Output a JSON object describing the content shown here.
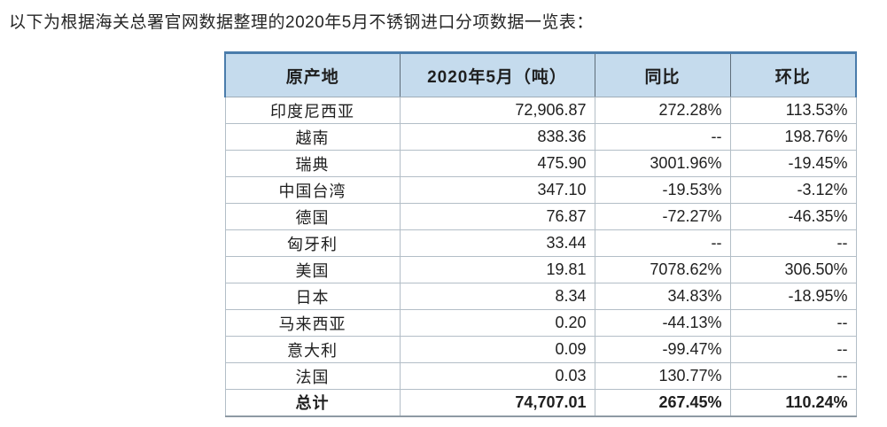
{
  "caption": "以下为根据海关总署官网数据整理的2020年5月不锈钢进口分项数据一览表：",
  "colors": {
    "header_bg": "#c5dbed",
    "header_accent_border": "#4a7cab",
    "grid_line": "#b3bec7",
    "table_bottom_border": "#8e9aa4",
    "text": "#1f1f1f"
  },
  "table": {
    "headers": [
      "原产地",
      "2020年5月（吨）",
      "同比",
      "环比"
    ],
    "rows": [
      {
        "origin": "印度尼西亚",
        "volume": "72,906.87",
        "yoy": "272.28%",
        "mom": "113.53%"
      },
      {
        "origin": "越南",
        "volume": "838.36",
        "yoy": "--",
        "mom": "198.76%"
      },
      {
        "origin": "瑞典",
        "volume": "475.90",
        "yoy": "3001.96%",
        "mom": "-19.45%"
      },
      {
        "origin": "中国台湾",
        "volume": "347.10",
        "yoy": "-19.53%",
        "mom": "-3.12%"
      },
      {
        "origin": "德国",
        "volume": "76.87",
        "yoy": "-72.27%",
        "mom": "-46.35%"
      },
      {
        "origin": "匈牙利",
        "volume": "33.44",
        "yoy": "--",
        "mom": "--"
      },
      {
        "origin": "美国",
        "volume": "19.81",
        "yoy": "7078.62%",
        "mom": "306.50%"
      },
      {
        "origin": "日本",
        "volume": "8.34",
        "yoy": "34.83%",
        "mom": "-18.95%"
      },
      {
        "origin": "马来西亚",
        "volume": "0.20",
        "yoy": "-44.13%",
        "mom": "--"
      },
      {
        "origin": "意大利",
        "volume": "0.09",
        "yoy": "-99.47%",
        "mom": "--"
      },
      {
        "origin": "法国",
        "volume": "0.03",
        "yoy": "130.77%",
        "mom": "--"
      }
    ],
    "total": {
      "origin": "总计",
      "volume": "74,707.01",
      "yoy": "267.45%",
      "mom": "110.24%"
    }
  }
}
